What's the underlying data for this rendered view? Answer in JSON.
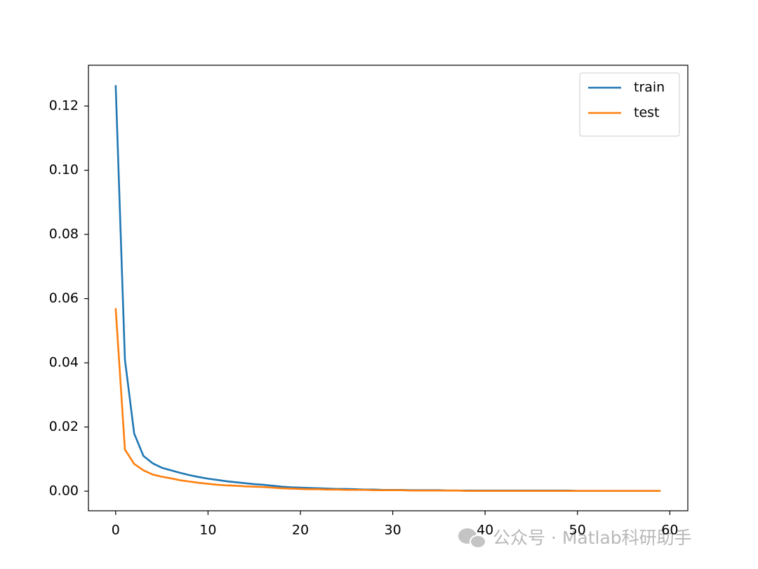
{
  "chart_data": {
    "type": "line",
    "x": [
      0,
      1,
      2,
      3,
      4,
      5,
      6,
      7,
      8,
      9,
      10,
      11,
      12,
      13,
      14,
      15,
      16,
      17,
      18,
      19,
      20,
      21,
      22,
      23,
      24,
      25,
      26,
      27,
      28,
      29,
      30,
      31,
      32,
      33,
      34,
      35,
      36,
      37,
      38,
      39,
      40,
      41,
      42,
      43,
      44,
      45,
      46,
      47,
      48,
      49,
      50,
      51,
      52,
      53,
      54,
      55,
      56,
      57,
      58,
      59
    ],
    "series": [
      {
        "name": "train",
        "color": "#1f77b4",
        "values": [
          0.1265,
          0.041,
          0.018,
          0.011,
          0.0087,
          0.0073,
          0.0065,
          0.0057,
          0.005,
          0.0044,
          0.0039,
          0.0035,
          0.0031,
          0.0028,
          0.0025,
          0.0022,
          0.002,
          0.0017,
          0.0014,
          0.0012,
          0.0011,
          0.001,
          0.0009,
          0.0008,
          0.0007,
          0.0007,
          0.0006,
          0.0005,
          0.0005,
          0.0004,
          0.0004,
          0.0004,
          0.0003,
          0.0003,
          0.0003,
          0.0003,
          0.0002,
          0.0002,
          0.0002,
          0.0002,
          0.0002,
          0.0002,
          0.0002,
          0.0002,
          0.0002,
          0.0002,
          0.0002,
          0.0002,
          0.0002,
          0.0002,
          0.0001,
          0.0001,
          0.0001,
          0.0001,
          0.0001,
          0.0001,
          0.0001,
          0.0001,
          0.0001,
          0.0001
        ]
      },
      {
        "name": "test",
        "color": "#ff7f0e",
        "values": [
          0.057,
          0.013,
          0.0085,
          0.0065,
          0.0052,
          0.0045,
          0.004,
          0.0034,
          0.003,
          0.0026,
          0.0023,
          0.002,
          0.0018,
          0.0017,
          0.0015,
          0.0014,
          0.0013,
          0.0011,
          0.0009,
          0.0008,
          0.0007,
          0.0006,
          0.0006,
          0.0005,
          0.0005,
          0.0004,
          0.0004,
          0.0004,
          0.0003,
          0.0003,
          0.0003,
          0.0003,
          0.0002,
          0.0002,
          0.0002,
          0.0002,
          0.0002,
          0.0002,
          0.0001,
          0.0001,
          0.0001,
          0.0001,
          0.0001,
          0.0001,
          0.0001,
          0.0001,
          0.0001,
          0.0001,
          0.0001,
          0.0001,
          0.0001,
          0.0001,
          0.0001,
          0.0001,
          0.0001,
          0.0001,
          0.0001,
          0.0001,
          0.0001,
          0.0001
        ]
      }
    ],
    "xlim": [
      -2.95,
      61.95
    ],
    "xticks": [
      0,
      10,
      20,
      30,
      40,
      50,
      60
    ],
    "ylim": [
      -0.0061,
      0.1327
    ],
    "yticks": [
      {
        "value": 0,
        "label": "0.00"
      },
      0.02,
      0.04,
      0.06,
      0.08,
      {
        "value": 0.1,
        "label": "0.10"
      },
      0.12
    ],
    "legend": "upper right",
    "watermark": "公众号 · Matlab科研助手"
  }
}
